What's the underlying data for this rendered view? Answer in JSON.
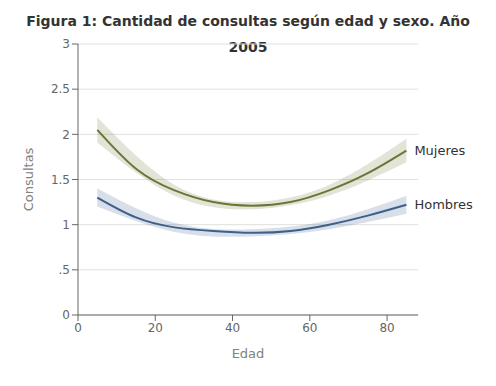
{
  "chart_data": {
    "type": "line",
    "title": "Figura 1: Cantidad de consultas según edad y sexo. Año 2005",
    "x_label": "Edad",
    "y_label": "Consultas",
    "xlim": [
      0,
      88
    ],
    "ylim": [
      0,
      3
    ],
    "xticks": [
      0,
      20,
      40,
      60,
      80
    ],
    "yticks": [
      0,
      {
        "value": 0.5,
        "label": ".5"
      },
      1,
      1.5,
      2,
      2.5,
      3
    ],
    "grid": true,
    "x": [
      5,
      15,
      25,
      35,
      45,
      55,
      65,
      75,
      85
    ],
    "series": [
      {
        "name": "Mujeres",
        "color": "#6b7635",
        "values": [
          2.05,
          1.62,
          1.38,
          1.25,
          1.21,
          1.25,
          1.38,
          1.57,
          1.82
        ],
        "band_x": [
          5,
          25,
          45,
          65,
          85
        ],
        "band_lower": [
          1.91,
          1.32,
          1.17,
          1.32,
          1.69
        ],
        "band_upper": [
          2.19,
          1.44,
          1.25,
          1.44,
          1.95
        ]
      },
      {
        "name": "Hombres",
        "color": "#3d5f8a",
        "values": [
          1.3,
          1.08,
          0.97,
          0.93,
          0.91,
          0.93,
          1.0,
          1.1,
          1.22
        ],
        "band_x": [
          5,
          25,
          45,
          65,
          85
        ],
        "band_lower": [
          1.2,
          0.92,
          0.87,
          0.95,
          1.12
        ],
        "band_upper": [
          1.4,
          1.02,
          0.95,
          1.05,
          1.32
        ]
      }
    ]
  }
}
